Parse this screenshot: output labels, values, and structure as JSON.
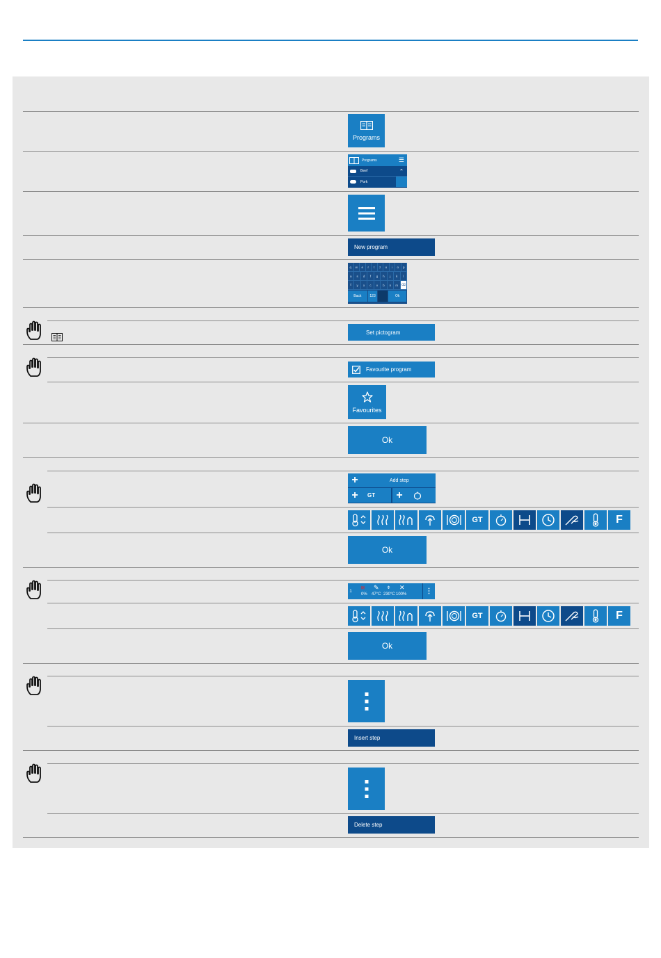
{
  "programs_tile": {
    "label": "Programs",
    "icon": "book-icon"
  },
  "program_list": {
    "header": "Programs",
    "items": [
      {
        "label": "Beef",
        "icon": "beef-icon"
      },
      {
        "label": "Pork",
        "icon": "pork-icon"
      }
    ]
  },
  "new_program_label": "New program",
  "keyboard": {
    "rows": [
      [
        "q",
        "w",
        "e",
        "r",
        "t",
        "z",
        "u",
        "i",
        "o",
        "p"
      ],
      [
        "a",
        "s",
        "d",
        "f",
        "g",
        "h",
        "j",
        "k",
        "l"
      ],
      [
        "⇧",
        "y",
        "x",
        "c",
        "v",
        "b",
        "n",
        "m",
        "⌫"
      ]
    ],
    "back": "Back",
    "abc": "123",
    "ok": "Ok"
  },
  "set_pictogram_label": "Set pictogram",
  "favourite_program_label": "Favourite program",
  "favourites_label": "Favourites",
  "ok_label": "Ok",
  "add_step_label": "Add step",
  "gt_label": "GT",
  "step_info": {
    "index": "1",
    "humidity": "0%",
    "core_temp": "47°C",
    "cabinet_temp": "230°C",
    "fan": "100%"
  },
  "insert_step_label": "Insert step",
  "delete_step_label": "Delete step",
  "colors": {
    "primary": "#1a7fc4",
    "dark": "#0d4a8a",
    "panel": "#e8e8e8",
    "rule": "#1a7fc4"
  }
}
